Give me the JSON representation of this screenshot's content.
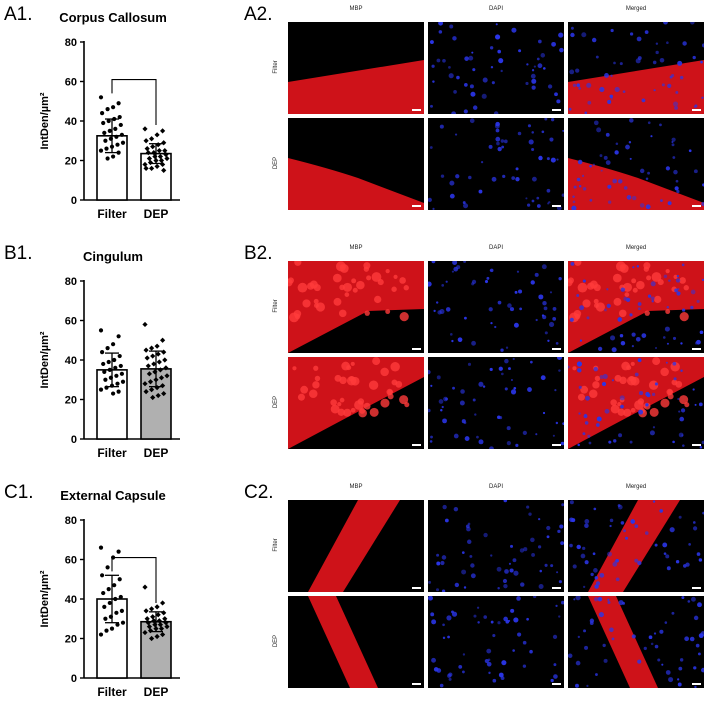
{
  "panels": {
    "a1": "A1.",
    "a2": "A2.",
    "b1": "B1.",
    "b2": "B2.",
    "c1": "C1.",
    "c2": "C2."
  },
  "micrograph": {
    "columns": [
      "MBP",
      "DAPI",
      "Merged"
    ],
    "rows": [
      "Filter",
      "DEP"
    ]
  },
  "colors": {
    "mbp": "#e0141b",
    "dapi": "#2a35e8",
    "bar_dep_gray": "#b0b0b0",
    "bar_white": "#ffffff"
  },
  "chart_data": [
    {
      "type": "bar",
      "title": "Corpus Callosum",
      "ylabel": "IntDen/µm²",
      "categories": [
        "Filter",
        "DEP"
      ],
      "values": [
        32.5,
        23.5
      ],
      "errors": [
        8.5,
        5.0
      ],
      "bar_colors": [
        "#ffffff",
        "#ffffff"
      ],
      "ylim": [
        0,
        80
      ],
      "yticks": [
        0,
        20,
        40,
        60,
        80
      ],
      "significance_bracket": true,
      "points": [
        [
          52,
          49,
          47,
          46,
          44,
          42,
          41,
          40,
          39,
          38,
          36,
          35,
          34,
          33,
          32,
          31,
          30,
          29,
          28,
          27,
          26,
          25,
          24,
          22,
          21
        ],
        [
          36,
          35,
          33,
          31,
          30,
          29,
          28,
          27,
          26,
          25,
          25,
          24,
          24,
          23,
          22,
          22,
          21,
          21,
          20,
          20,
          19,
          18,
          18,
          17,
          16,
          16,
          15
        ]
      ]
    },
    {
      "type": "bar",
      "title": "Cingulum",
      "ylabel": "IntDen/µm²",
      "categories": [
        "Filter",
        "DEP"
      ],
      "values": [
        35,
        35.5
      ],
      "errors": [
        8.5,
        9.0
      ],
      "bar_colors": [
        "#ffffff",
        "#b0b0b0"
      ],
      "ylim": [
        0,
        80
      ],
      "yticks": [
        0,
        20,
        40,
        60,
        80
      ],
      "significance_bracket": false,
      "points": [
        [
          55,
          52,
          48,
          46,
          44,
          42,
          40,
          39,
          38,
          37,
          36,
          35,
          34,
          33,
          32,
          31,
          30,
          29,
          28,
          27,
          26,
          25,
          24,
          23
        ],
        [
          58,
          50,
          47,
          46,
          45,
          44,
          43,
          42,
          41,
          40,
          39,
          38,
          37,
          36,
          35,
          34,
          33,
          32,
          31,
          30,
          29,
          28,
          27,
          26,
          25,
          24,
          23,
          22,
          21
        ]
      ]
    },
    {
      "type": "bar",
      "title": "External Capsule",
      "ylabel": "IntDen/µm²",
      "categories": [
        "Filter",
        "DEP"
      ],
      "values": [
        40,
        28.5
      ],
      "errors": [
        12.0,
        5.0
      ],
      "bar_colors": [
        "#ffffff",
        "#b0b0b0"
      ],
      "ylim": [
        0,
        80
      ],
      "yticks": [
        0,
        20,
        40,
        60,
        80
      ],
      "significance_bracket": true,
      "points": [
        [
          66,
          64,
          61,
          56,
          52,
          50,
          47,
          45,
          43,
          41,
          40,
          38,
          36,
          34,
          33,
          31,
          30,
          28,
          27,
          25,
          24,
          22
        ],
        [
          46,
          38,
          36,
          35,
          34,
          33,
          32,
          31,
          30,
          30,
          29,
          29,
          28,
          28,
          27,
          27,
          26,
          26,
          25,
          25,
          24,
          23,
          22,
          21,
          20
        ]
      ]
    }
  ]
}
